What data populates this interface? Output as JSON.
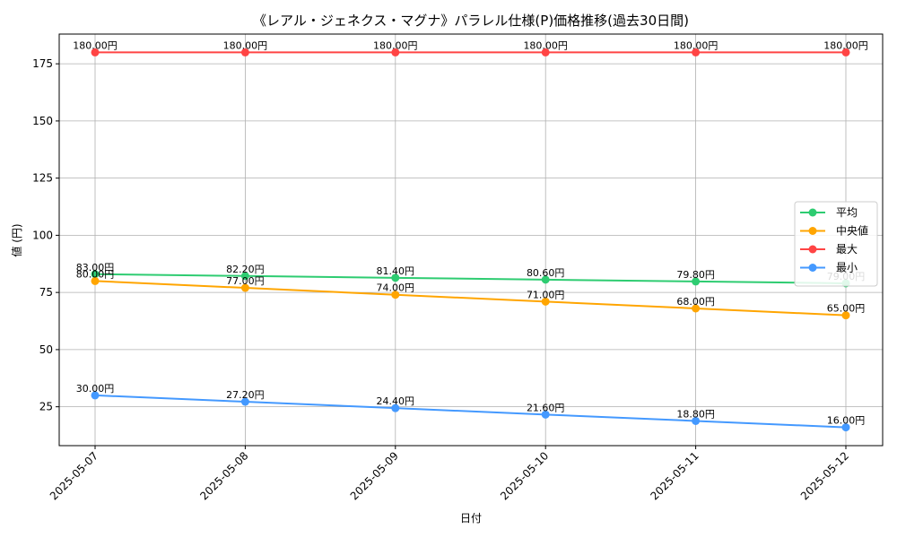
{
  "chart_data": {
    "type": "line",
    "title": "《レアル・ジェネクス・マグナ》パラレル仕様(P)価格推移(過去30日間)",
    "xlabel": "日付",
    "ylabel": "値 (円)",
    "categories": [
      "2025-05-07",
      "2025-05-08",
      "2025-05-09",
      "2025-05-10",
      "2025-05-11",
      "2025-05-12"
    ],
    "ylim": [
      8,
      188
    ],
    "yticks": [
      25,
      50,
      75,
      100,
      125,
      150,
      175
    ],
    "grid": true,
    "legend_position": "center-right",
    "value_suffix": "円",
    "series": [
      {
        "name": "平均",
        "color": "#2ecc71",
        "values": [
          83.0,
          82.2,
          81.4,
          80.6,
          79.8,
          79.0
        ]
      },
      {
        "name": "中央値",
        "color": "#ffa500",
        "values": [
          80.0,
          77.0,
          74.0,
          71.0,
          68.0,
          65.0
        ]
      },
      {
        "name": "最大",
        "color": "#ff4444",
        "values": [
          180.0,
          180.0,
          180.0,
          180.0,
          180.0,
          180.0
        ]
      },
      {
        "name": "最小",
        "color": "#4499ff",
        "values": [
          30.0,
          27.2,
          24.4,
          21.6,
          18.8,
          16.0
        ]
      }
    ]
  }
}
